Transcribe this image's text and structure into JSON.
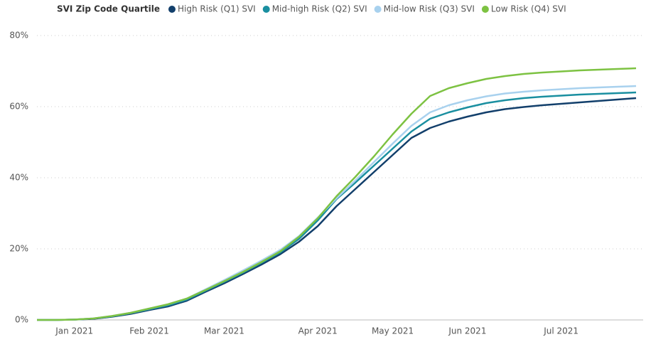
{
  "chart_data": {
    "type": "line",
    "legend_title": "SVI Zip Code Quartile",
    "categories": [
      null,
      null,
      "Jan 2021",
      null,
      null,
      null,
      "Feb 2021",
      null,
      null,
      null,
      "Mar 2021",
      null,
      null,
      null,
      null,
      "Apr 2021",
      null,
      null,
      null,
      "May 2021",
      null,
      null,
      null,
      "Jun 2021",
      null,
      null,
      null,
      null,
      "Jul 2021",
      null,
      null,
      null,
      null
    ],
    "series": [
      {
        "name": "High Risk (Q1) SVI",
        "color": "#123f6b",
        "values": [
          0,
          0,
          0.1,
          0.3,
          0.9,
          1.7,
          2.8,
          3.8,
          5.4,
          7.9,
          10.3,
          12.9,
          15.6,
          18.5,
          22.0,
          26.4,
          32.0,
          36.8,
          41.6,
          46.4,
          51.2,
          54.0,
          55.8,
          57.2,
          58.4,
          59.3,
          59.9,
          60.4,
          60.8,
          61.2,
          61.6,
          62.0,
          62.4
        ]
      },
      {
        "name": "Mid-high Risk (Q2) SVI",
        "color": "#1a8fa0",
        "values": [
          0,
          0,
          0.1,
          0.4,
          1.0,
          1.9,
          3.0,
          4.1,
          5.7,
          8.2,
          10.7,
          13.3,
          16.1,
          19.0,
          22.8,
          28.0,
          34.0,
          38.6,
          43.4,
          48.2,
          53.0,
          56.6,
          58.4,
          59.8,
          61.0,
          61.8,
          62.4,
          62.8,
          63.1,
          63.4,
          63.6,
          63.8,
          64.0
        ]
      },
      {
        "name": "Mid-low Risk (Q3) SVI",
        "color": "#a8d1ee",
        "values": [
          0,
          0,
          0.1,
          0.4,
          1.1,
          2.0,
          3.2,
          4.4,
          6.0,
          8.6,
          11.2,
          13.9,
          16.7,
          19.7,
          23.6,
          28.8,
          34.2,
          39.2,
          44.4,
          49.6,
          54.6,
          58.4,
          60.4,
          61.8,
          62.9,
          63.7,
          64.2,
          64.6,
          64.9,
          65.2,
          65.4,
          65.6,
          65.8
        ]
      },
      {
        "name": "Low Risk (Q4) SVI",
        "color": "#7dc242",
        "values": [
          0,
          0,
          0.1,
          0.4,
          1.1,
          2.0,
          3.2,
          4.4,
          6.0,
          8.4,
          10.9,
          13.5,
          16.3,
          19.3,
          23.4,
          28.6,
          34.8,
          40.2,
          46.0,
          52.2,
          58.0,
          63.0,
          65.2,
          66.6,
          67.8,
          68.6,
          69.2,
          69.6,
          69.9,
          70.2,
          70.4,
          70.6,
          70.8
        ]
      }
    ],
    "ylim": [
      0,
      80
    ],
    "yticks": [
      {
        "value": 0,
        "label": "0%"
      },
      {
        "value": 20,
        "label": "20%"
      },
      {
        "value": 40,
        "label": "40%"
      },
      {
        "value": 60,
        "label": "60%"
      },
      {
        "value": 80,
        "label": "80%"
      }
    ],
    "grid": true
  }
}
